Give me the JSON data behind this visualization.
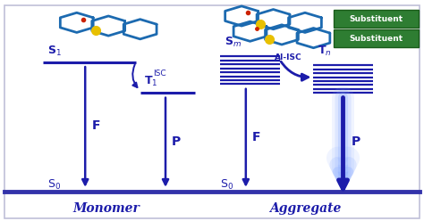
{
  "blue": "#1c1caa",
  "blue_dark": "#0000aa",
  "green_box": "#2e7d32",
  "light_blue_glow": "#88aaff",
  "white": "#ffffff",
  "border_color": "#c0c0d8",
  "bottom_bar_color": "#3333aa",
  "mol_blue": "#1c6ab0",
  "yellow": "#e8c000",
  "red_dot": "#cc2200",
  "monomer_label": "Monomer",
  "aggregate_label": "Aggregate",
  "s1_label": "S$_1$",
  "t1_label": "T$_1$",
  "sm_label": "S$_m$",
  "tn_label": "T$_n$",
  "s0_left_label": "S$_0$",
  "s0_right_label": "S$_0$",
  "F_left": "F",
  "P_left": "P",
  "F_right": "F",
  "P_right": "P",
  "isc_label": "ISC",
  "ai_isc_label": "AI-ISC",
  "sub1": "Substituent",
  "sub2": "Substituent",
  "figsize": [
    4.74,
    2.48
  ],
  "dpi": 100
}
